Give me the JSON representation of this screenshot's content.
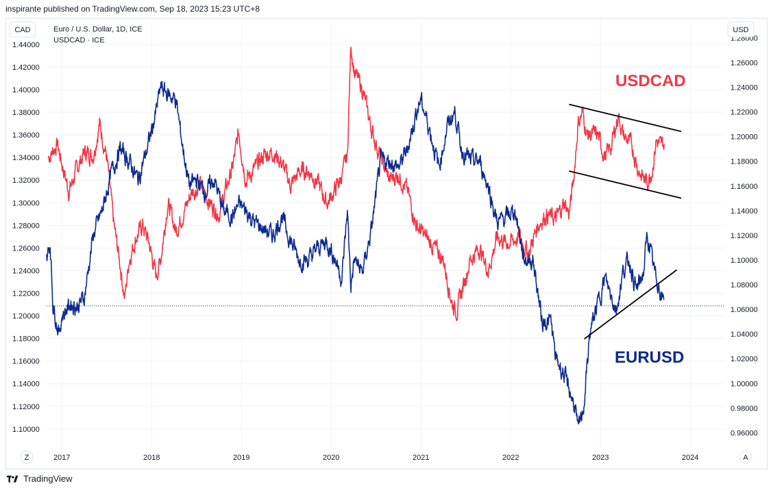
{
  "header": {
    "published": "inspirante published on TradingView.com, Sep 18, 2023 15:23 UTC+8"
  },
  "footer": {
    "brand": "TradingView"
  },
  "legend": {
    "line1": "Euro / U.S. Dollar, 1D, ICE",
    "line2": "USDCAD · ICE"
  },
  "buttons": {
    "left_scale": "CAD",
    "right_scale": "USD",
    "zoom": "Z",
    "auto": "A"
  },
  "colors": {
    "usdcad": "#f23645",
    "eurusd": "#0d2a8f",
    "trendline": "#000000",
    "grid": "#f0f3fa",
    "axis_text": "#131722"
  },
  "chart_data": {
    "type": "line",
    "annotations": {
      "usdcad_label": "USDCAD",
      "eurusd_label": "EURUSD"
    },
    "x_axis": {
      "ticks": [
        "2017",
        "2018",
        "2019",
        "2020",
        "2021",
        "2022",
        "2023",
        "2024"
      ],
      "range": [
        2016.83,
        2024.38
      ]
    },
    "left_axis": {
      "unit": "CAD",
      "ticks": [
        "1.44000",
        "1.42000",
        "1.40000",
        "1.38000",
        "1.36000",
        "1.34000",
        "1.32000",
        "1.30000",
        "1.28000",
        "1.26000",
        "1.24000",
        "1.22000",
        "1.20000",
        "1.18000",
        "1.16000",
        "1.14000",
        "1.12000",
        "1.10000"
      ],
      "range": [
        1.089,
        1.449
      ]
    },
    "right_axis": {
      "unit": "USD",
      "ticks": [
        "1.28000",
        "1.26000",
        "1.24000",
        "1.22000",
        "1.20000",
        "1.18000",
        "1.16000",
        "1.14000",
        "1.12000",
        "1.10000",
        "1.08000",
        "1.06000",
        "1.04000",
        "1.02000",
        "1.00000",
        "0.98000",
        "0.96000"
      ],
      "range": [
        0.953,
        1.283
      ]
    },
    "series": [
      {
        "name": "USDCAD",
        "axis": "left",
        "points": [
          [
            2016.85,
            1.34
          ],
          [
            2016.95,
            1.352
          ],
          [
            2017.0,
            1.335
          ],
          [
            2017.08,
            1.31
          ],
          [
            2017.17,
            1.33
          ],
          [
            2017.25,
            1.345
          ],
          [
            2017.35,
            1.342
          ],
          [
            2017.42,
            1.37
          ],
          [
            2017.5,
            1.34
          ],
          [
            2017.58,
            1.28
          ],
          [
            2017.65,
            1.245
          ],
          [
            2017.7,
            1.215
          ],
          [
            2017.75,
            1.25
          ],
          [
            2017.83,
            1.27
          ],
          [
            2017.9,
            1.28
          ],
          [
            2017.97,
            1.265
          ],
          [
            2018.05,
            1.235
          ],
          [
            2018.1,
            1.25
          ],
          [
            2018.18,
            1.3
          ],
          [
            2018.27,
            1.275
          ],
          [
            2018.35,
            1.29
          ],
          [
            2018.45,
            1.31
          ],
          [
            2018.55,
            1.315
          ],
          [
            2018.65,
            1.3
          ],
          [
            2018.75,
            1.29
          ],
          [
            2018.82,
            1.31
          ],
          [
            2018.9,
            1.33
          ],
          [
            2018.97,
            1.362
          ],
          [
            2019.05,
            1.32
          ],
          [
            2019.15,
            1.33
          ],
          [
            2019.25,
            1.342
          ],
          [
            2019.35,
            1.345
          ],
          [
            2019.45,
            1.335
          ],
          [
            2019.55,
            1.315
          ],
          [
            2019.65,
            1.328
          ],
          [
            2019.75,
            1.328
          ],
          [
            2019.85,
            1.318
          ],
          [
            2019.95,
            1.3
          ],
          [
            2020.0,
            1.305
          ],
          [
            2020.1,
            1.32
          ],
          [
            2020.18,
            1.34
          ],
          [
            2020.22,
            1.44
          ],
          [
            2020.26,
            1.415
          ],
          [
            2020.35,
            1.4
          ],
          [
            2020.45,
            1.365
          ],
          [
            2020.55,
            1.34
          ],
          [
            2020.65,
            1.32
          ],
          [
            2020.75,
            1.325
          ],
          [
            2020.85,
            1.31
          ],
          [
            2020.95,
            1.28
          ],
          [
            2021.05,
            1.27
          ],
          [
            2021.15,
            1.26
          ],
          [
            2021.25,
            1.25
          ],
          [
            2021.35,
            1.21
          ],
          [
            2021.4,
            1.205
          ],
          [
            2021.45,
            1.22
          ],
          [
            2021.55,
            1.25
          ],
          [
            2021.65,
            1.26
          ],
          [
            2021.75,
            1.24
          ],
          [
            2021.85,
            1.27
          ],
          [
            2021.95,
            1.265
          ],
          [
            2022.0,
            1.265
          ],
          [
            2022.1,
            1.27
          ],
          [
            2022.2,
            1.255
          ],
          [
            2022.3,
            1.28
          ],
          [
            2022.4,
            1.29
          ],
          [
            2022.5,
            1.285
          ],
          [
            2022.6,
            1.3
          ],
          [
            2022.65,
            1.29
          ],
          [
            2022.7,
            1.32
          ],
          [
            2022.75,
            1.37
          ],
          [
            2022.8,
            1.38
          ],
          [
            2022.85,
            1.36
          ],
          [
            2022.9,
            1.36
          ],
          [
            2022.97,
            1.36
          ],
          [
            2023.05,
            1.34
          ],
          [
            2023.12,
            1.35
          ],
          [
            2023.2,
            1.378
          ],
          [
            2023.25,
            1.36
          ],
          [
            2023.35,
            1.35
          ],
          [
            2023.42,
            1.33
          ],
          [
            2023.45,
            1.325
          ],
          [
            2023.52,
            1.318
          ],
          [
            2023.58,
            1.33
          ],
          [
            2023.62,
            1.355
          ],
          [
            2023.67,
            1.35
          ],
          [
            2023.71,
            1.352
          ]
        ]
      },
      {
        "name": "EURUSD",
        "axis": "right",
        "points": [
          [
            2016.83,
            1.1
          ],
          [
            2016.87,
            1.115
          ],
          [
            2016.9,
            1.065
          ],
          [
            2016.97,
            1.04
          ],
          [
            2017.0,
            1.055
          ],
          [
            2017.1,
            1.065
          ],
          [
            2017.17,
            1.062
          ],
          [
            2017.25,
            1.07
          ],
          [
            2017.35,
            1.12
          ],
          [
            2017.45,
            1.14
          ],
          [
            2017.55,
            1.17
          ],
          [
            2017.65,
            1.19
          ],
          [
            2017.75,
            1.18
          ],
          [
            2017.85,
            1.165
          ],
          [
            2017.95,
            1.19
          ],
          [
            2018.05,
            1.22
          ],
          [
            2018.1,
            1.24
          ],
          [
            2018.17,
            1.235
          ],
          [
            2018.27,
            1.23
          ],
          [
            2018.35,
            1.19
          ],
          [
            2018.42,
            1.16
          ],
          [
            2018.5,
            1.165
          ],
          [
            2018.6,
            1.155
          ],
          [
            2018.7,
            1.165
          ],
          [
            2018.8,
            1.14
          ],
          [
            2018.9,
            1.135
          ],
          [
            2018.97,
            1.145
          ],
          [
            2019.05,
            1.14
          ],
          [
            2019.15,
            1.13
          ],
          [
            2019.25,
            1.125
          ],
          [
            2019.35,
            1.12
          ],
          [
            2019.45,
            1.135
          ],
          [
            2019.55,
            1.115
          ],
          [
            2019.65,
            1.1
          ],
          [
            2019.75,
            1.1
          ],
          [
            2019.85,
            1.11
          ],
          [
            2019.95,
            1.115
          ],
          [
            2020.05,
            1.1
          ],
          [
            2020.12,
            1.085
          ],
          [
            2020.18,
            1.14
          ],
          [
            2020.22,
            1.08
          ],
          [
            2020.26,
            1.1
          ],
          [
            2020.35,
            1.09
          ],
          [
            2020.45,
            1.125
          ],
          [
            2020.55,
            1.18
          ],
          [
            2020.65,
            1.18
          ],
          [
            2020.75,
            1.175
          ],
          [
            2020.85,
            1.19
          ],
          [
            2020.95,
            1.22
          ],
          [
            2021.0,
            1.23
          ],
          [
            2021.1,
            1.205
          ],
          [
            2021.2,
            1.175
          ],
          [
            2021.3,
            1.21
          ],
          [
            2021.38,
            1.22
          ],
          [
            2021.45,
            1.19
          ],
          [
            2021.55,
            1.18
          ],
          [
            2021.65,
            1.18
          ],
          [
            2021.75,
            1.16
          ],
          [
            2021.85,
            1.13
          ],
          [
            2021.95,
            1.135
          ],
          [
            2022.05,
            1.14
          ],
          [
            2022.15,
            1.1
          ],
          [
            2022.25,
            1.1
          ],
          [
            2022.35,
            1.05
          ],
          [
            2022.45,
            1.05
          ],
          [
            2022.5,
            1.02
          ],
          [
            2022.58,
            1.01
          ],
          [
            2022.65,
            0.995
          ],
          [
            2022.72,
            0.98
          ],
          [
            2022.75,
            0.96
          ],
          [
            2022.82,
            0.985
          ],
          [
            2022.88,
            1.04
          ],
          [
            2022.97,
            1.065
          ],
          [
            2023.05,
            1.085
          ],
          [
            2023.1,
            1.075
          ],
          [
            2023.18,
            1.06
          ],
          [
            2023.25,
            1.09
          ],
          [
            2023.32,
            1.1
          ],
          [
            2023.4,
            1.075
          ],
          [
            2023.48,
            1.09
          ],
          [
            2023.52,
            1.12
          ],
          [
            2023.55,
            1.11
          ],
          [
            2023.6,
            1.09
          ],
          [
            2023.65,
            1.08
          ],
          [
            2023.68,
            1.07
          ],
          [
            2023.71,
            1.068
          ]
        ]
      }
    ]
  }
}
